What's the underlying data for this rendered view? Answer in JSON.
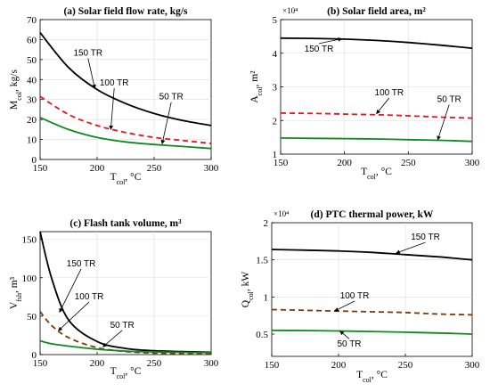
{
  "chart_data": [
    {
      "type": "line",
      "title": "(a) Solar field flow rate, kg/s",
      "xlabel": "T_col, °C",
      "ylabel": "M_col, kg/s",
      "xlim": [
        150,
        300
      ],
      "ylim": [
        0,
        70
      ],
      "xticks": [
        150,
        200,
        250,
        300
      ],
      "yticks": [
        0,
        10,
        20,
        30,
        40,
        50,
        60,
        70
      ],
      "multiplier": "",
      "grid": true,
      "x": [
        150,
        175,
        200,
        225,
        250,
        275,
        300
      ],
      "series": [
        {
          "name": "150 TR",
          "color": "#000000",
          "dash": "solid",
          "values": [
            63.5,
            46,
            35,
            28,
            23,
            19.5,
            17
          ],
          "label_at": [
            192,
            52
          ],
          "arrow_to": [
            198,
            35.5
          ]
        },
        {
          "name": "100 TR",
          "color": "#e8141a",
          "dash": "dashed",
          "values": [
            31.5,
            22.5,
            17,
            13.5,
            11,
            9.5,
            8
          ],
          "label_at": [
            215,
            37
          ],
          "arrow_to": [
            212,
            15
          ]
        },
        {
          "name": "50 TR",
          "color": "#0e8a1e",
          "dash": "solid",
          "values": [
            21,
            15,
            11,
            8.8,
            7.5,
            6.5,
            5.5
          ],
          "label_at": [
            265,
            30
          ],
          "arrow_to": [
            257,
            7.8
          ]
        }
      ]
    },
    {
      "type": "line",
      "title": "(b) Solar field area, m²",
      "xlabel": "T_col, °C",
      "ylabel": "A_col, m²",
      "xlim": [
        150,
        300
      ],
      "ylim": [
        1,
        5
      ],
      "xticks": [
        150,
        200,
        250,
        300
      ],
      "yticks": [
        1,
        2,
        3,
        4,
        5
      ],
      "multiplier": "×10⁴",
      "grid": true,
      "x": [
        150,
        175,
        200,
        225,
        250,
        275,
        300
      ],
      "series": [
        {
          "name": "150 TR",
          "color": "#000000",
          "dash": "solid",
          "values": [
            4.45,
            4.44,
            4.42,
            4.38,
            4.32,
            4.24,
            4.15
          ],
          "label_at": [
            180,
            4.05
          ],
          "arrow_to": [
            198,
            4.43
          ]
        },
        {
          "name": "100 TR",
          "color": "#e8141a",
          "dash": "dashed",
          "values": [
            2.22,
            2.21,
            2.19,
            2.17,
            2.14,
            2.1,
            2.07
          ],
          "label_at": [
            235,
            2.75
          ],
          "arrow_to": [
            225,
            2.2
          ]
        },
        {
          "name": "50 TR",
          "color": "#0e8a1e",
          "dash": "solid",
          "values": [
            1.48,
            1.47,
            1.46,
            1.45,
            1.43,
            1.41,
            1.38
          ],
          "label_at": [
            282,
            2.55
          ],
          "arrow_to": [
            273,
            1.42
          ]
        }
      ]
    },
    {
      "type": "line",
      "title": "(c) Flash tank volume, m³",
      "xlabel": "T_col, °C",
      "ylabel": "V_fsh, m³",
      "xlim": [
        150,
        300
      ],
      "ylim": [
        0,
        160
      ],
      "xticks": [
        150,
        200,
        250,
        300
      ],
      "yticks": [
        0,
        50,
        100,
        150
      ],
      "multiplier": "",
      "grid": true,
      "x": [
        150,
        160,
        175,
        200,
        225,
        250,
        275,
        300
      ],
      "series": [
        {
          "name": "150 TR",
          "color": "#000000",
          "dash": "solid",
          "values": [
            160,
            100,
            45,
            17,
            8,
            5,
            4,
            3
          ],
          "label_at": [
            186,
            115
          ],
          "arrow_to": [
            167,
            55
          ]
        },
        {
          "name": "100 TR",
          "color": "#7a3b0a",
          "dash": "dashed",
          "values": [
            56,
            38,
            22,
            9,
            4,
            2,
            1.5,
            1.5
          ],
          "label_at": [
            193,
            72
          ],
          "arrow_to": [
            166,
            31
          ]
        },
        {
          "name": "50 TR",
          "color": "#0e8a1e",
          "dash": "solid",
          "values": [
            18,
            14,
            11,
            7,
            4.5,
            3.5,
            3,
            2.5
          ],
          "label_at": [
            222,
            35
          ],
          "arrow_to": [
            205,
            10
          ]
        }
      ]
    },
    {
      "type": "line",
      "title": "(d) PTC thermal power, kW",
      "xlabel": "T_col, °C",
      "ylabel": "Q_col, kW",
      "xlim": [
        150,
        300
      ],
      "ylim": [
        0.2,
        2
      ],
      "xticks": [
        150,
        200,
        250,
        300
      ],
      "yticks": [
        0.5,
        1,
        1.5,
        2
      ],
      "multiplier": "×10⁴",
      "grid": true,
      "x": [
        150,
        175,
        200,
        225,
        250,
        275,
        300
      ],
      "series": [
        {
          "name": "150 TR",
          "color": "#000000",
          "dash": "solid",
          "values": [
            1.64,
            1.63,
            1.62,
            1.6,
            1.57,
            1.54,
            1.5
          ],
          "label_at": [
            265,
            1.77
          ],
          "arrow_to": [
            243,
            1.59
          ]
        },
        {
          "name": "100 TR",
          "color": "#7a3b0a",
          "dash": "dashed",
          "values": [
            0.83,
            0.82,
            0.81,
            0.8,
            0.79,
            0.77,
            0.76
          ],
          "label_at": [
            212,
            0.98
          ],
          "arrow_to": [
            197,
            0.81
          ]
        },
        {
          "name": "50 TR",
          "color": "#0e8a1e",
          "dash": "solid",
          "values": [
            0.55,
            0.548,
            0.542,
            0.535,
            0.525,
            0.515,
            0.5
          ],
          "label_at": [
            208,
            0.33
          ],
          "arrow_to": [
            201,
            0.54
          ]
        }
      ]
    }
  ]
}
